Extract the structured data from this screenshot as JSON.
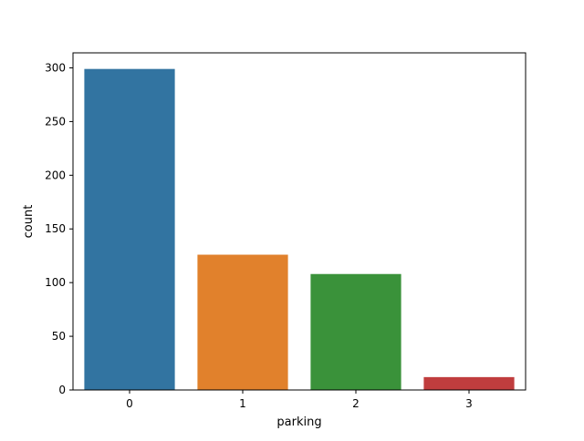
{
  "chart_data": {
    "type": "bar",
    "categories": [
      "0",
      "1",
      "2",
      "3"
    ],
    "values": [
      299,
      126,
      108,
      12
    ],
    "colors": [
      "#3274a1",
      "#e1812c",
      "#3a923a",
      "#c03d3e"
    ],
    "title": "",
    "xlabel": "parking",
    "ylabel": "count",
    "ylim": [
      0,
      314
    ],
    "yticks": [
      0,
      50,
      100,
      150,
      200,
      250,
      300
    ],
    "grid": false,
    "legend": "none"
  }
}
